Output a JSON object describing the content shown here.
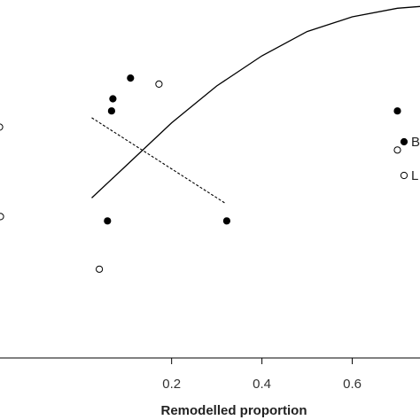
{
  "chart_data": {
    "type": "scatter",
    "title": "",
    "xlabel": "Remodelled proportion",
    "ylabel": "",
    "xlim": [
      -0.18,
      0.75
    ],
    "ylim": [
      0,
      1
    ],
    "grid": false,
    "legend_position": "right",
    "x_ticks": [
      {
        "value": 0.2,
        "label": "0.2"
      },
      {
        "value": 0.4,
        "label": "0.4"
      },
      {
        "value": 0.6,
        "label": "0.6"
      }
    ],
    "series": [
      {
        "name": "B",
        "marker": "filled-circle",
        "color": "#000000",
        "points": [
          {
            "x": 0.109,
            "y": 0.782
          },
          {
            "x": 0.07,
            "y": 0.724
          },
          {
            "x": 0.067,
            "y": 0.69
          },
          {
            "x": 0.058,
            "y": 0.383
          },
          {
            "x": 0.322,
            "y": 0.383
          },
          {
            "x": 0.7,
            "y": 0.69
          }
        ]
      },
      {
        "name": "L",
        "marker": "open-circle",
        "color": "#000000",
        "points": [
          {
            "x": 0.172,
            "y": 0.765
          },
          {
            "x": -0.181,
            "y": 0.645
          },
          {
            "x": -0.179,
            "y": 0.395
          },
          {
            "x": 0.04,
            "y": 0.248
          },
          {
            "x": 0.7,
            "y": 0.581
          }
        ]
      }
    ],
    "lines": [
      {
        "style": "solid",
        "points": [
          [
            0.023,
            0.447
          ],
          [
            0.1,
            0.538
          ],
          [
            0.2,
            0.657
          ],
          [
            0.3,
            0.76
          ],
          [
            0.4,
            0.844
          ],
          [
            0.5,
            0.912
          ],
          [
            0.6,
            0.953
          ],
          [
            0.7,
            0.977
          ],
          [
            0.75,
            0.982
          ]
        ]
      },
      {
        "style": "dashed",
        "points": [
          [
            0.023,
            0.671
          ],
          [
            0.318,
            0.433
          ]
        ]
      }
    ],
    "colors": {
      "axis": "#000000",
      "marker": "#000000",
      "line": "#000000"
    }
  }
}
